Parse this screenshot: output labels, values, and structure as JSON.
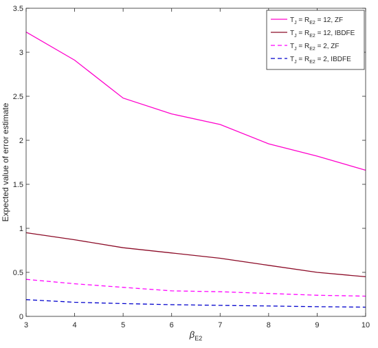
{
  "chart_data": {
    "type": "line",
    "title": "",
    "xlabel": "β",
    "xlabel_sub": "E2",
    "ylabel": "Expected value of error estimate",
    "xlim": [
      3,
      10
    ],
    "ylim": [
      0,
      3.5
    ],
    "xticks": [
      "3",
      "4",
      "5",
      "6",
      "7",
      "8",
      "9",
      "10"
    ],
    "yticks": [
      "0",
      "0.5",
      "1",
      "1.5",
      "2",
      "2.5",
      "3",
      "3.5"
    ],
    "grid": false,
    "legend_position": "top-right",
    "x": [
      3,
      4,
      5,
      6,
      7,
      8,
      9,
      10
    ],
    "series": [
      {
        "label": {
          "a": "T",
          "a_sub": "J",
          "b": " = R",
          "b_sub": "E2",
          "c": " = 12, ZF"
        },
        "values": [
          3.23,
          2.91,
          2.48,
          2.3,
          2.18,
          1.96,
          1.82,
          1.66
        ],
        "color": "#ff00cc",
        "dash": "solid"
      },
      {
        "label": {
          "a": "T",
          "a_sub": "J",
          "b": " = R",
          "b_sub": "E2",
          "c": " = 12, IBDFE"
        },
        "values": [
          0.95,
          0.87,
          0.78,
          0.72,
          0.66,
          0.58,
          0.5,
          0.45
        ],
        "color": "#8b0a26",
        "dash": "solid"
      },
      {
        "label": {
          "a": "T",
          "a_sub": "J",
          "b": " = R",
          "b_sub": "E2",
          "c": " = 2, ZF"
        },
        "values": [
          0.42,
          0.37,
          0.33,
          0.29,
          0.28,
          0.26,
          0.24,
          0.23
        ],
        "color": "#ff00ff",
        "dash": "dashed"
      },
      {
        "label": {
          "a": "T",
          "a_sub": "J",
          "b": " = R",
          "b_sub": "E2",
          "c": " =  2, IBDFE"
        },
        "values": [
          0.19,
          0.16,
          0.145,
          0.133,
          0.125,
          0.118,
          0.11,
          0.105
        ],
        "color": "#0000cc",
        "dash": "dashed"
      }
    ]
  }
}
